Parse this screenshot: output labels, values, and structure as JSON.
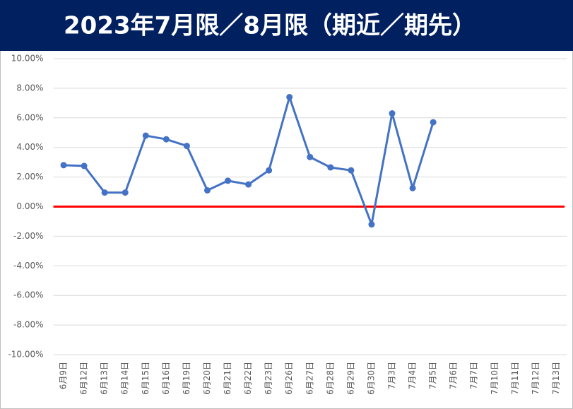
{
  "chart_data": {
    "type": "line",
    "title": "2023年7月限／8月限（期近／期先）",
    "categories": [
      "6月9日",
      "6月12日",
      "6月13日",
      "6月14日",
      "6月15日",
      "6月16日",
      "6月19日",
      "6月20日",
      "6月21日",
      "6月22日",
      "6月23日",
      "6月26日",
      "6月27日",
      "6月28日",
      "6月29日",
      "6月30日",
      "7月3日",
      "7月4日",
      "7月5日",
      "7月6日",
      "7月7日",
      "7月10日",
      "7月11日",
      "7月12日",
      "7月13日"
    ],
    "values": [
      2.8,
      2.75,
      0.95,
      0.95,
      4.8,
      4.55,
      4.1,
      1.1,
      1.75,
      1.5,
      2.45,
      7.4,
      3.35,
      2.65,
      2.45,
      -1.2,
      6.3,
      1.25,
      5.7,
      null,
      null,
      null,
      null,
      null,
      null
    ],
    "color": "#4472c4",
    "zero_line_color": "#ff0000",
    "title_background": "#002060",
    "ylim": [
      -10,
      10
    ],
    "yticks": [
      {
        "value": -10,
        "label": "-10.00%"
      },
      {
        "value": -8,
        "label": "-8.00%"
      },
      {
        "value": -6,
        "label": "-6.00%"
      },
      {
        "value": -4,
        "label": "-4.00%"
      },
      {
        "value": -2,
        "label": "-2.00%"
      },
      {
        "value": 0,
        "label": "0.00%"
      },
      {
        "value": 2,
        "label": "2.00%"
      },
      {
        "value": 4,
        "label": "4.00%"
      },
      {
        "value": 6,
        "label": "6.00%"
      },
      {
        "value": 8,
        "label": "8.00%"
      },
      {
        "value": 10,
        "label": "10.00%"
      }
    ],
    "grid": true
  }
}
